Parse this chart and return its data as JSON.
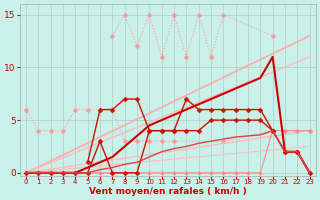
{
  "xlabel": "Vent moyen/en rafales ( km/h )",
  "background_color": "#caf0ea",
  "grid_color": "#b0c8c4",
  "xlim": [
    -0.5,
    23.5
  ],
  "ylim": [
    -0.3,
    16.0
  ],
  "yticks": [
    0,
    5,
    10,
    15
  ],
  "xticks": [
    0,
    1,
    2,
    3,
    4,
    5,
    6,
    7,
    8,
    9,
    10,
    11,
    12,
    13,
    14,
    15,
    16,
    17,
    18,
    19,
    20,
    21,
    22,
    23
  ],
  "series": [
    {
      "x": [
        0,
        1,
        2,
        3,
        4,
        5,
        6,
        7,
        8,
        9,
        10,
        11,
        12,
        16,
        20,
        21,
        22,
        23
      ],
      "y": [
        6,
        4,
        4,
        4,
        6,
        6,
        6,
        6,
        3,
        3,
        3,
        3,
        3,
        3,
        4,
        4,
        4,
        4
      ],
      "color": "#ff9999",
      "linewidth": 0.8,
      "linestyle": "dotted",
      "marker": "D",
      "markersize": 2.5,
      "connect_all": true
    },
    {
      "x": [
        7,
        8,
        9,
        10,
        11,
        12,
        13,
        14,
        15,
        16,
        20
      ],
      "y": [
        13,
        15,
        12,
        15,
        11,
        15,
        11,
        15,
        11,
        15,
        13
      ],
      "color": "#ff9999",
      "linewidth": 0.8,
      "linestyle": "dotted",
      "marker": "D",
      "markersize": 2.5,
      "connect_all": true
    },
    {
      "x": [
        0,
        23
      ],
      "y": [
        0,
        13
      ],
      "color": "#ffaaaa",
      "linewidth": 1.2,
      "linestyle": "-",
      "marker": null,
      "markersize": 0,
      "connect_all": true
    },
    {
      "x": [
        0,
        23
      ],
      "y": [
        0,
        11
      ],
      "color": "#ffbbbb",
      "linewidth": 1.0,
      "linestyle": "-",
      "marker": null,
      "markersize": 0,
      "connect_all": true
    },
    {
      "x": [
        0,
        23
      ],
      "y": [
        0,
        4.0
      ],
      "color": "#ffbbbb",
      "linewidth": 1.0,
      "linestyle": "-",
      "marker": null,
      "markersize": 0,
      "connect_all": true
    },
    {
      "x": [
        0,
        23
      ],
      "y": [
        0,
        2.5
      ],
      "color": "#ffbbbb",
      "linewidth": 0.8,
      "linestyle": "-",
      "marker": null,
      "markersize": 0,
      "connect_all": true
    },
    {
      "x": [
        0,
        1,
        2,
        3,
        4,
        5,
        6,
        7,
        8,
        9,
        10,
        11,
        12,
        13,
        14,
        15,
        16,
        17,
        18,
        19,
        20,
        21,
        22,
        23
      ],
      "y": [
        0,
        0,
        0,
        0,
        0,
        0,
        0,
        0,
        0,
        0,
        0,
        0,
        0,
        0,
        0,
        0,
        0,
        0,
        0,
        0,
        4,
        4,
        4,
        4
      ],
      "color": "#ff8888",
      "linewidth": 0.8,
      "linestyle": "-",
      "marker": "D",
      "markersize": 2.0,
      "connect_all": true
    },
    {
      "x": [
        5,
        6,
        7,
        8,
        9,
        10,
        11,
        12,
        13,
        14,
        15,
        16,
        17,
        18,
        19,
        20,
        21,
        22
      ],
      "y": [
        1,
        6,
        6,
        7,
        7,
        4,
        4,
        4,
        7,
        6,
        6,
        6,
        6,
        6,
        6,
        4,
        2,
        2
      ],
      "color": "#cc1100",
      "linewidth": 1.0,
      "linestyle": "-",
      "marker": "D",
      "markersize": 2.5,
      "connect_all": true
    },
    {
      "x": [
        0,
        1,
        2,
        3,
        4,
        5,
        6,
        7,
        8,
        9,
        10,
        11,
        12,
        13,
        14,
        15,
        16,
        17,
        18,
        19,
        20,
        21,
        22,
        23
      ],
      "y": [
        0,
        0,
        0,
        0,
        0,
        0,
        3,
        0,
        0,
        0,
        4,
        4,
        4,
        4,
        4,
        5,
        5,
        5,
        5,
        5,
        4,
        2,
        2,
        0
      ],
      "color": "#cc1100",
      "linewidth": 1.0,
      "linestyle": "-",
      "marker": "D",
      "markersize": 2.5,
      "connect_all": true
    },
    {
      "x": [
        0,
        1,
        2,
        3,
        4,
        5,
        6,
        7,
        8,
        9,
        10,
        11,
        12,
        13,
        14,
        15,
        16,
        17,
        18,
        19,
        20,
        21,
        22,
        23
      ],
      "y": [
        0,
        0,
        0,
        0,
        0,
        0.5,
        1,
        1.5,
        2.5,
        3.5,
        4.5,
        5,
        5.5,
        6,
        6.5,
        7,
        7.5,
        8,
        8.5,
        9,
        11,
        2,
        2,
        0
      ],
      "color": "#cc0000",
      "linewidth": 1.5,
      "linestyle": "-",
      "marker": null,
      "markersize": 0,
      "connect_all": true
    },
    {
      "x": [
        0,
        1,
        2,
        3,
        4,
        5,
        6,
        7,
        8,
        9,
        10,
        11,
        12,
        13,
        14,
        15,
        16,
        17,
        18,
        19,
        20,
        21,
        22,
        23
      ],
      "y": [
        0,
        0,
        0,
        0,
        0,
        0,
        0.3,
        0.5,
        0.8,
        1,
        1.5,
        2,
        2.3,
        2.5,
        2.8,
        3,
        3.2,
        3.4,
        3.5,
        3.6,
        4,
        2,
        2,
        0
      ],
      "color": "#dd4444",
      "linewidth": 1.0,
      "linestyle": "-",
      "marker": null,
      "markersize": 0,
      "connect_all": true
    }
  ]
}
